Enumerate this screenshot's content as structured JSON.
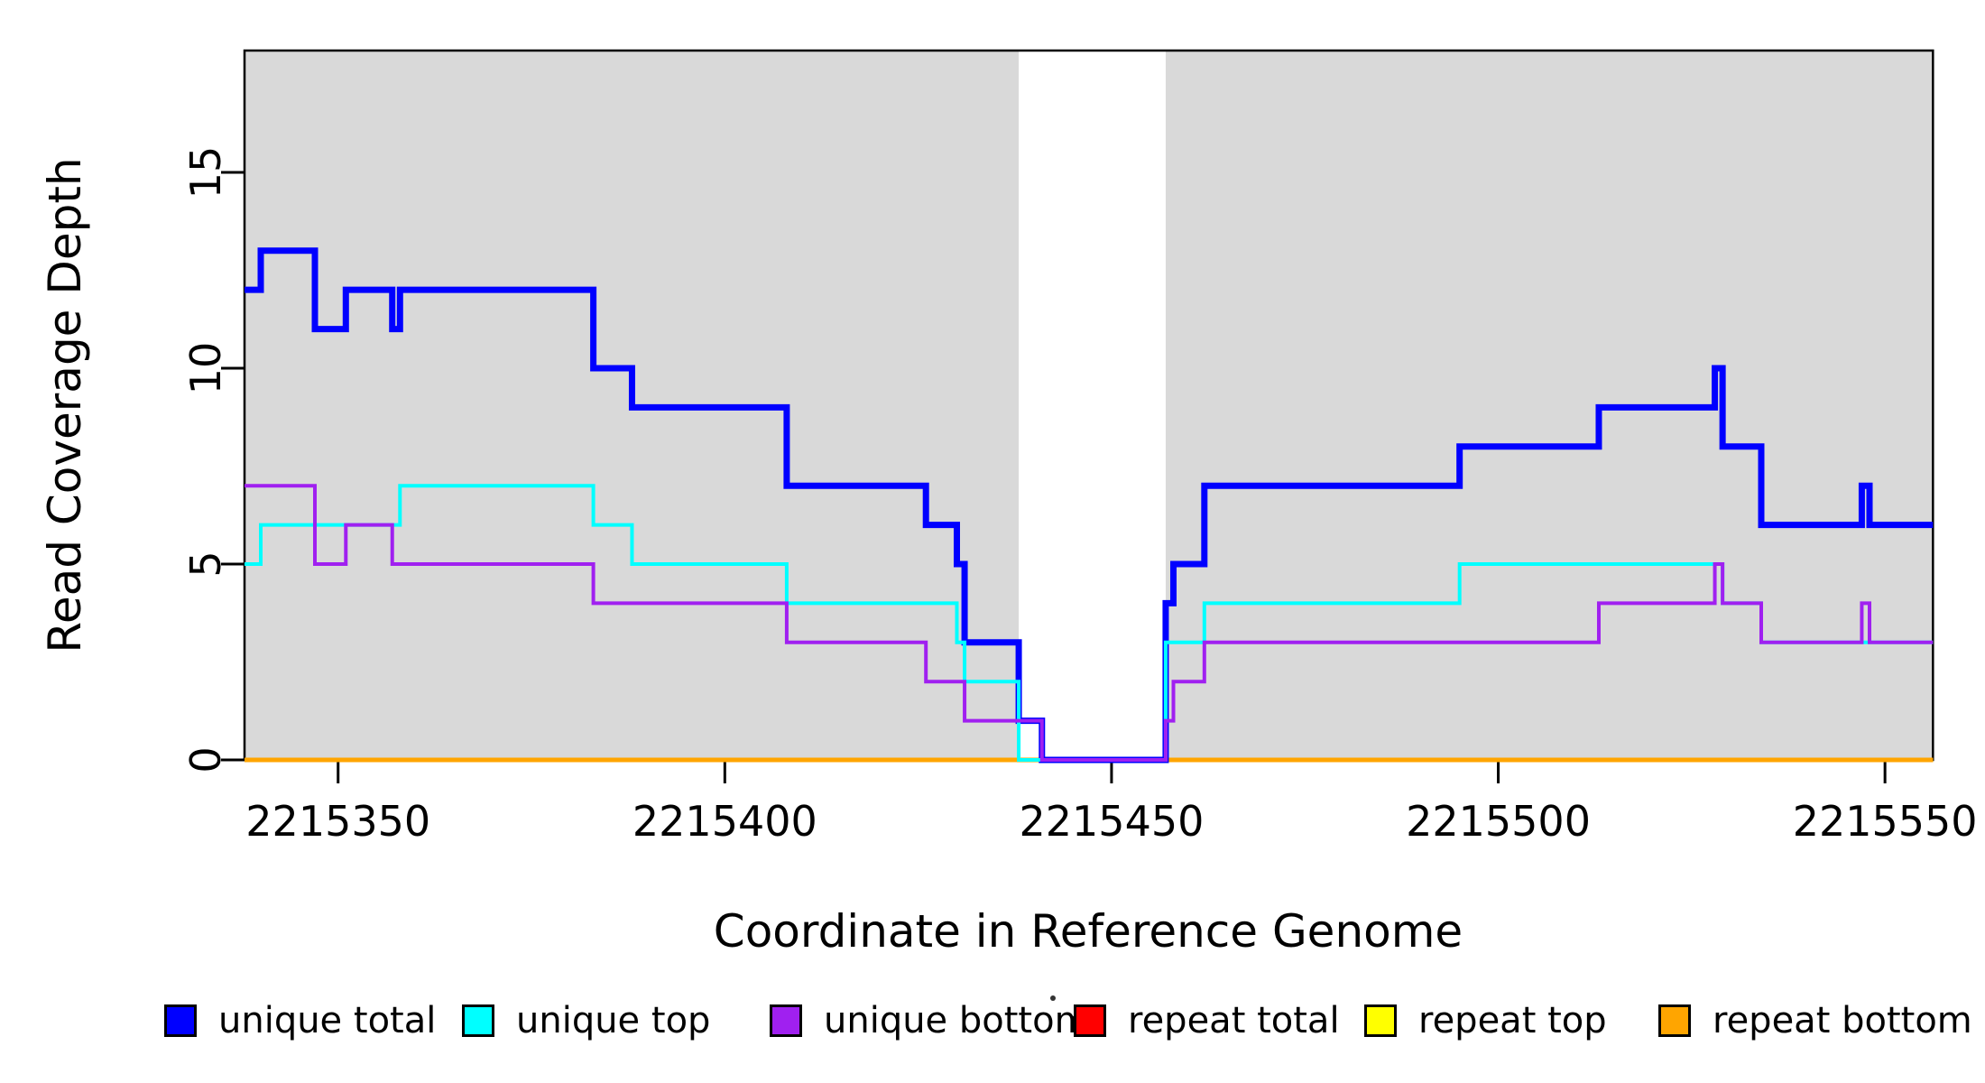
{
  "figure": {
    "y_axis": {
      "title": "Read Coverage Depth"
    },
    "x_axis": {
      "title": "Coordinate in Reference Genome"
    },
    "legend": [
      {
        "label": "unique total",
        "color": "#0000FF"
      },
      {
        "label": "unique top",
        "color": "#00FFFF"
      },
      {
        "label": "unique bottom",
        "color": "#A020F0"
      },
      {
        "label": "repeat total",
        "color": "#FF0000"
      },
      {
        "label": "repeat top",
        "color": "#FFFF00"
      },
      {
        "label": "repeat bottom",
        "color": "#FFA500"
      }
    ]
  },
  "chart_data": {
    "type": "line",
    "step": true,
    "title": "",
    "xlabel": "Coordinate in Reference Genome",
    "ylabel": "Read Coverage Depth",
    "xlim": [
      2215337.9,
      2215556.2
    ],
    "ylim": [
      0,
      18.11
    ],
    "x_ticks": [
      2215350,
      2215400,
      2215450,
      2215500,
      2215550
    ],
    "y_ticks": [
      0,
      5,
      10,
      15
    ],
    "grid": false,
    "legend_position": "bottom",
    "shade_color": "#D9D9D9",
    "shaded_regions": [
      [
        2215337.9,
        2215438
      ],
      [
        2215457,
        2215556.2
      ]
    ],
    "series": [
      {
        "name": "repeat total",
        "color": "#FF0000",
        "width": 4.5,
        "points": [
          [
            2215337.9,
            0
          ],
          [
            2215556.2,
            0
          ]
        ]
      },
      {
        "name": "repeat top",
        "color": "#FFFF00",
        "width": 4.5,
        "points": [
          [
            2215337.9,
            0
          ],
          [
            2215556.2,
            0
          ]
        ]
      },
      {
        "name": "repeat bottom",
        "color": "#FFA500",
        "width": 5,
        "points": [
          [
            2215337.9,
            0
          ],
          [
            2215556.2,
            0
          ]
        ]
      },
      {
        "name": "unique total",
        "color": "#0000FF",
        "width": 7,
        "points": [
          [
            2215337.9,
            12
          ],
          [
            2215340,
            13
          ],
          [
            2215347,
            11
          ],
          [
            2215351,
            12
          ],
          [
            2215357,
            11
          ],
          [
            2215358,
            12
          ],
          [
            2215383,
            10
          ],
          [
            2215388,
            9
          ],
          [
            2215408,
            7
          ],
          [
            2215426,
            6
          ],
          [
            2215430,
            5
          ],
          [
            2215431,
            3
          ],
          [
            2215438,
            1
          ],
          [
            2215441,
            0
          ],
          [
            2215457,
            4
          ],
          [
            2215458,
            5
          ],
          [
            2215462,
            7
          ],
          [
            2215495,
            8
          ],
          [
            2215513,
            9
          ],
          [
            2215528,
            10
          ],
          [
            2215529,
            8
          ],
          [
            2215534,
            6
          ],
          [
            2215547,
            7
          ],
          [
            2215548,
            6
          ],
          [
            2215556.2,
            6
          ]
        ]
      },
      {
        "name": "unique top",
        "color": "#00FFFF",
        "width": 4,
        "points": [
          [
            2215337.9,
            5
          ],
          [
            2215340,
            6
          ],
          [
            2215358,
            7
          ],
          [
            2215383,
            6
          ],
          [
            2215388,
            5
          ],
          [
            2215408,
            4
          ],
          [
            2215430,
            3
          ],
          [
            2215431,
            2
          ],
          [
            2215438,
            0
          ],
          [
            2215457,
            3
          ],
          [
            2215462,
            4
          ],
          [
            2215495,
            5
          ],
          [
            2215529,
            4
          ],
          [
            2215534,
            3
          ],
          [
            2215556.2,
            3
          ]
        ]
      },
      {
        "name": "unique bottom",
        "color": "#A020F0",
        "width": 4,
        "points": [
          [
            2215337.9,
            7
          ],
          [
            2215347,
            5
          ],
          [
            2215351,
            6
          ],
          [
            2215357,
            5
          ],
          [
            2215383,
            4
          ],
          [
            2215408,
            3
          ],
          [
            2215426,
            2
          ],
          [
            2215431,
            1
          ],
          [
            2215441,
            0
          ],
          [
            2215457,
            1
          ],
          [
            2215458,
            2
          ],
          [
            2215462,
            3
          ],
          [
            2215513,
            4
          ],
          [
            2215528,
            5
          ],
          [
            2215529,
            4
          ],
          [
            2215534,
            3
          ],
          [
            2215547,
            4
          ],
          [
            2215548,
            3
          ],
          [
            2215556.2,
            3
          ]
        ]
      }
    ]
  }
}
